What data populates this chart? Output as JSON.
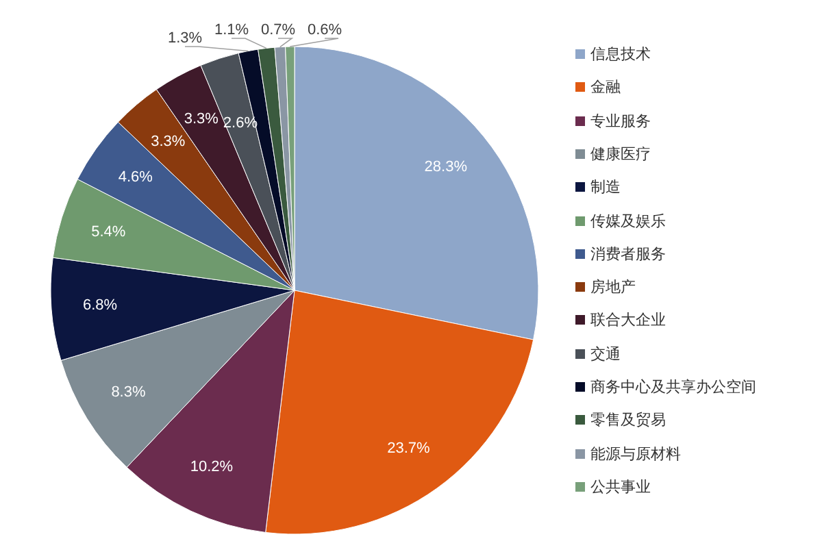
{
  "chart_data": {
    "type": "pie",
    "categories": [
      "信息技术",
      "金融",
      "专业服务",
      "健康医疗",
      "制造",
      "传媒及娱乐",
      "消费者服务",
      "房地产",
      "联合大企业",
      "交通",
      "商务中心及共享办公空间",
      "零售及贸易",
      "能源与原材料",
      "公共事业"
    ],
    "values": [
      28.3,
      23.7,
      10.2,
      8.3,
      6.8,
      5.4,
      4.6,
      3.3,
      3.3,
      2.6,
      1.3,
      1.1,
      0.7,
      0.6
    ],
    "colors": [
      "#8ea6c9",
      "#e05a12",
      "#6b2c4e",
      "#7f8c94",
      "#0c1640",
      "#6f9a6e",
      "#3f5a8e",
      "#8a3a0e",
      "#3f1a2a",
      "#4a5058",
      "#050c28",
      "#3a5a3e",
      "#8a96a4",
      "#78a07a"
    ],
    "value_labels": [
      "28.3%",
      "23.7%",
      "10.2%",
      "8.3%",
      "6.8%",
      "5.4%",
      "4.6%",
      "3.3%",
      "3.3%",
      "2.6%",
      "1.3%",
      "1.1%",
      "0.7%",
      "0.6%"
    ],
    "legend": "right"
  }
}
